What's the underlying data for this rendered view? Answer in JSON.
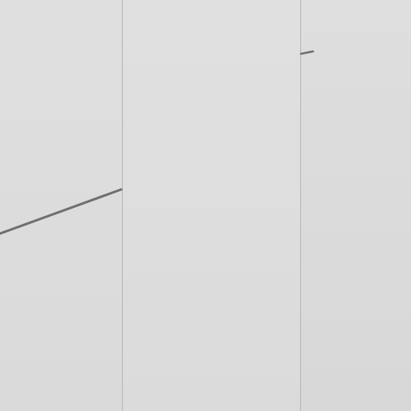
{
  "colors": {
    "background": "#dcdcdc",
    "divider": "#b6b6b6",
    "stroke": "#6f6f6f"
  }
}
